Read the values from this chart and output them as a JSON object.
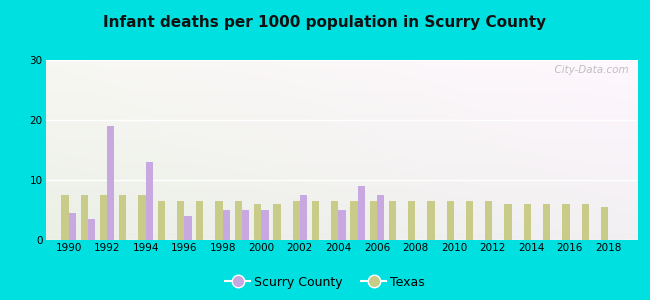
{
  "title": "Infant deaths per 1000 population in Scurry County",
  "years": [
    1990,
    1991,
    1992,
    1993,
    1994,
    1995,
    1996,
    1997,
    1998,
    1999,
    2000,
    2001,
    2002,
    2003,
    2004,
    2005,
    2006,
    2007,
    2008,
    2009,
    2010,
    2011,
    2012,
    2013,
    2014,
    2015,
    2016,
    2017,
    2018
  ],
  "scurry": [
    4.5,
    3.5,
    19.0,
    0,
    13.0,
    0,
    4.0,
    0,
    5.0,
    5.0,
    5.0,
    0,
    7.5,
    0,
    5.0,
    9.0,
    7.5,
    0,
    0,
    0,
    0,
    0,
    0,
    0,
    0,
    0,
    0,
    0,
    0
  ],
  "texas": [
    7.5,
    7.5,
    7.5,
    7.5,
    7.5,
    6.5,
    6.5,
    6.5,
    6.5,
    6.5,
    6.0,
    6.0,
    6.5,
    6.5,
    6.5,
    6.5,
    6.5,
    6.5,
    6.5,
    6.5,
    6.5,
    6.5,
    6.5,
    6.0,
    6.0,
    6.0,
    6.0,
    6.0,
    5.5
  ],
  "scurry_color": "#c8a8e0",
  "texas_color": "#c8cc88",
  "ylim": [
    0,
    30
  ],
  "yticks": [
    0,
    10,
    20,
    30
  ],
  "bar_width": 0.38,
  "outer_color": "#00e0e0",
  "watermark": "  City-Data.com"
}
